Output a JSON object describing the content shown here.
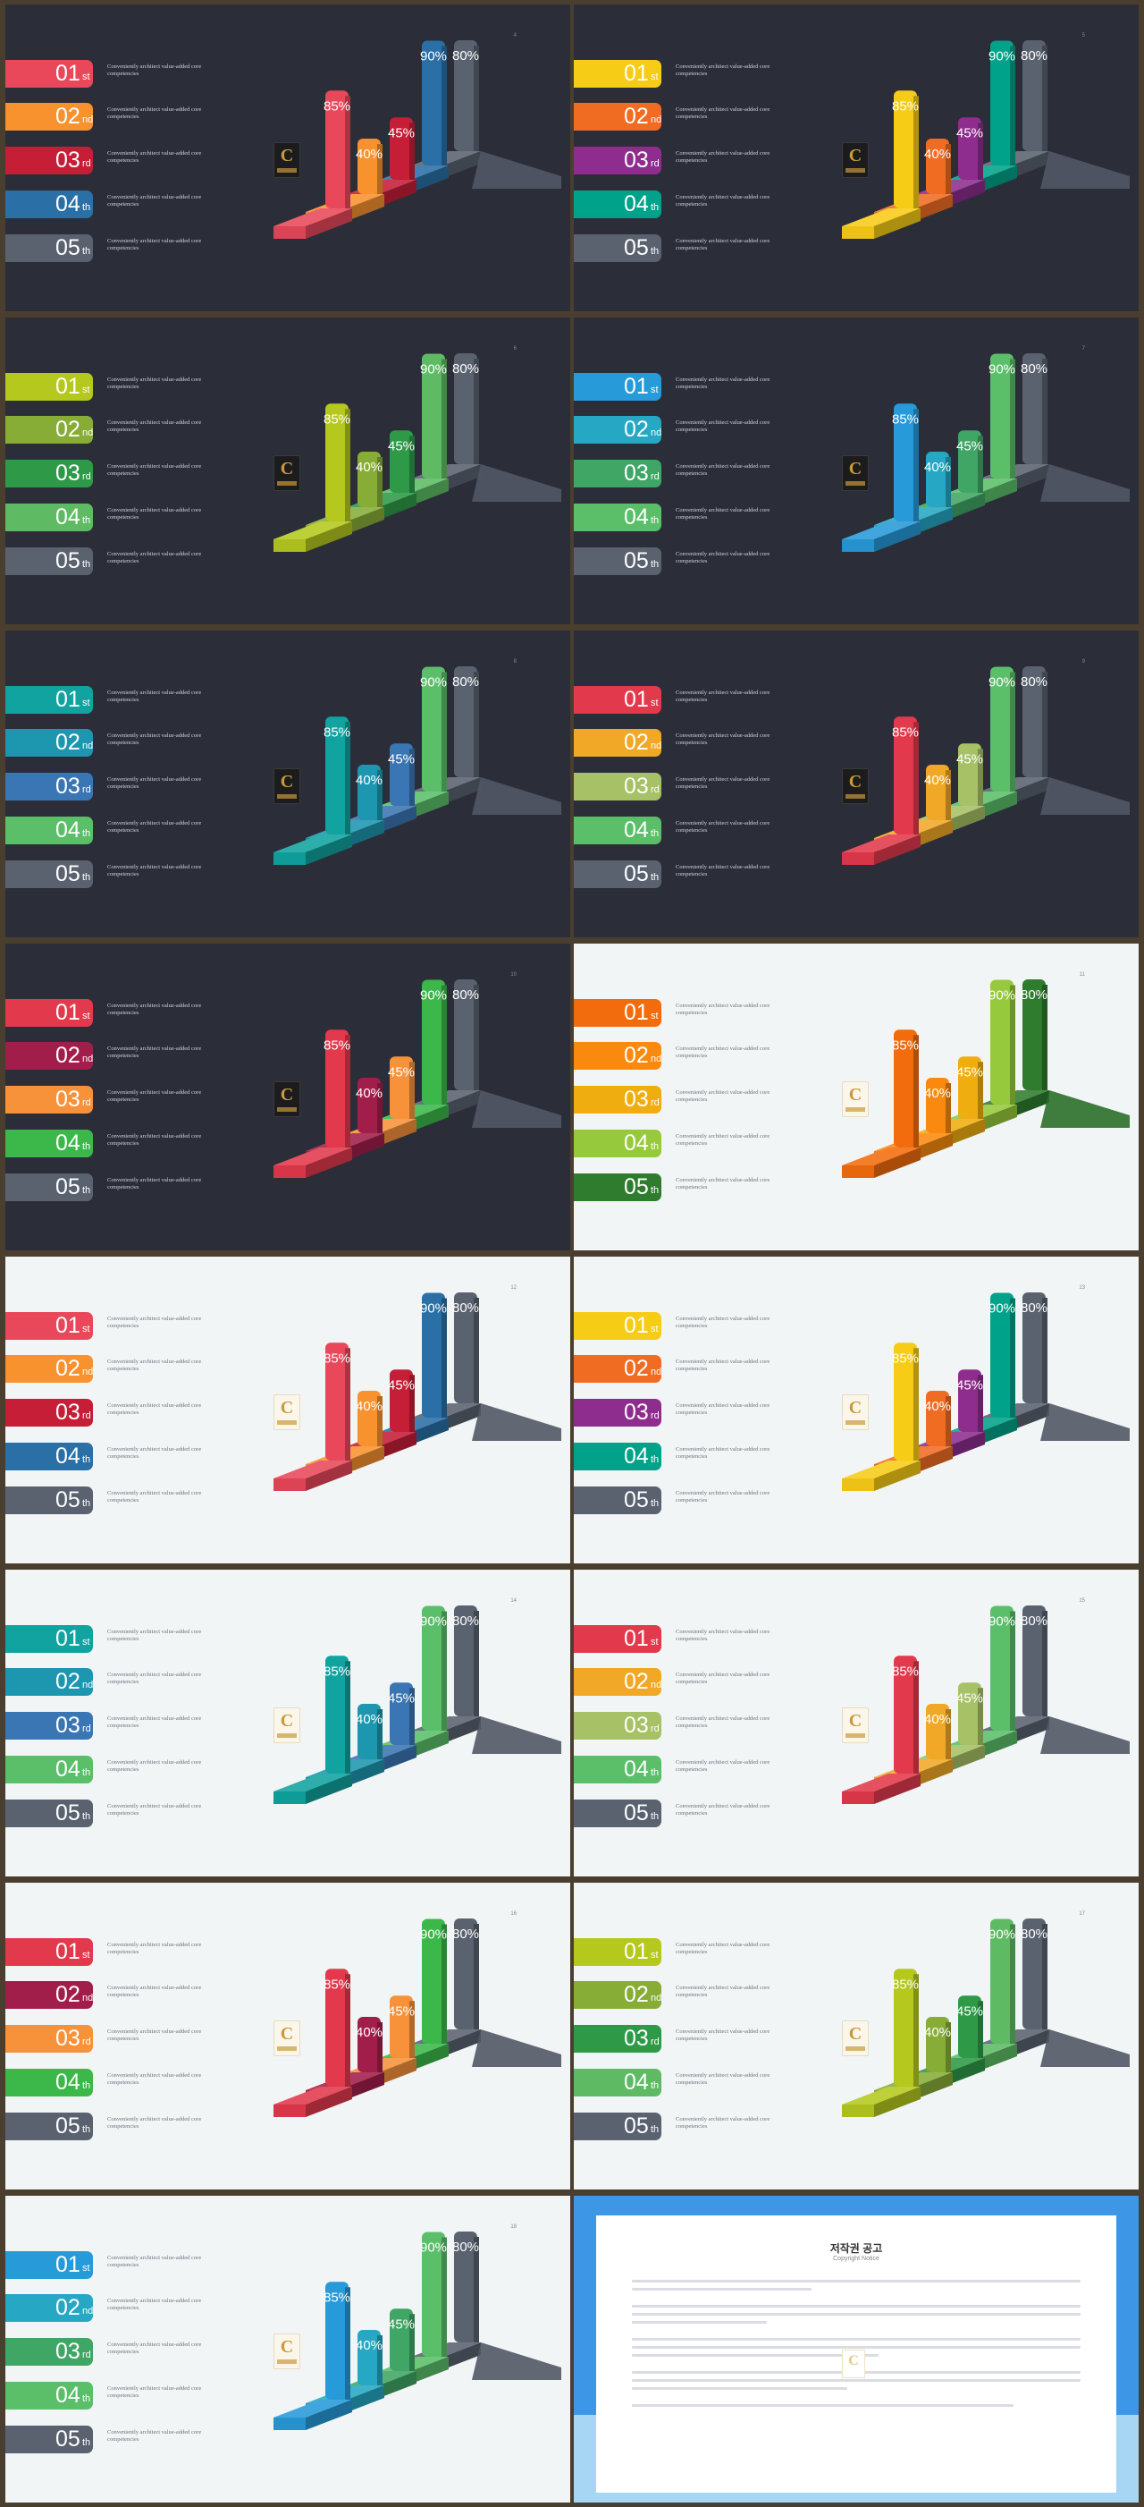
{
  "common": {
    "items": [
      {
        "num": "01",
        "suffix": "st",
        "desc": "Conveniently architect value-added core competencies"
      },
      {
        "num": "02",
        "suffix": "nd",
        "desc": "Conveniently architect value-added core competencies"
      },
      {
        "num": "03",
        "suffix": "rd",
        "desc": "Conveniently architect value-added core competencies"
      },
      {
        "num": "04",
        "suffix": "th",
        "desc": "Conveniently architect value-added core competencies"
      },
      {
        "num": "05",
        "suffix": "th",
        "desc": "Conveniently architect value-added core competencies"
      }
    ],
    "bars": [
      {
        "label": "85%",
        "value": 85
      },
      {
        "label": "40%",
        "value": 40
      },
      {
        "label": "45%",
        "value": 45
      },
      {
        "label": "90%",
        "value": 90
      },
      {
        "label": "80%",
        "value": 80
      }
    ],
    "logo_letter": "C"
  },
  "slides": [
    {
      "page": "4",
      "theme": "dark",
      "colors": [
        "#e8485a",
        "#f7922f",
        "#c51e36",
        "#2a6fa6",
        "#5a6270"
      ]
    },
    {
      "page": "5",
      "theme": "dark",
      "colors": [
        "#f7cc16",
        "#f06c23",
        "#8e2d8e",
        "#00a389",
        "#5a6270"
      ]
    },
    {
      "page": "6",
      "theme": "dark",
      "colors": [
        "#b4c81e",
        "#88ad37",
        "#2e9a48",
        "#5ebb64",
        "#5a6270"
      ]
    },
    {
      "page": "7",
      "theme": "dark",
      "colors": [
        "#279ad9",
        "#26a7c3",
        "#40a665",
        "#5bbf6a",
        "#5a6270"
      ]
    },
    {
      "page": "8",
      "theme": "dark",
      "colors": [
        "#10a3a0",
        "#1d97b0",
        "#3a76b4",
        "#5bbf6a",
        "#5a6270"
      ]
    },
    {
      "page": "9",
      "theme": "dark",
      "colors": [
        "#e2394c",
        "#f1a827",
        "#a6c166",
        "#5bbf6a",
        "#5a6270"
      ]
    },
    {
      "page": "10",
      "theme": "dark",
      "colors": [
        "#e2394c",
        "#a21e4a",
        "#f7923a",
        "#3cb84a",
        "#5a6270"
      ]
    },
    {
      "page": "11",
      "theme": "light",
      "colors": [
        "#f26c0d",
        "#f98a0f",
        "#f0ad0f",
        "#97c93c",
        "#2f7c2f"
      ]
    },
    {
      "page": "12",
      "theme": "light",
      "colors": [
        "#e8485a",
        "#f7922f",
        "#c51e36",
        "#2a6fa6",
        "#5a6270"
      ]
    },
    {
      "page": "13",
      "theme": "light",
      "colors": [
        "#f7cc16",
        "#f06c23",
        "#8e2d8e",
        "#00a389",
        "#5a6270"
      ]
    },
    {
      "page": "14",
      "theme": "light",
      "colors": [
        "#10a3a0",
        "#1d97b0",
        "#3a76b4",
        "#5bbf6a",
        "#5a6270"
      ]
    },
    {
      "page": "15",
      "theme": "light",
      "colors": [
        "#e2394c",
        "#f1a827",
        "#a6c166",
        "#5bbf6a",
        "#5a6270"
      ]
    },
    {
      "page": "16",
      "theme": "light",
      "colors": [
        "#e2394c",
        "#a21e4a",
        "#f7923a",
        "#3cb84a",
        "#5a6270"
      ]
    },
    {
      "page": "17",
      "theme": "light",
      "colors": [
        "#b4c81e",
        "#88ad37",
        "#2e9a48",
        "#5ebb64",
        "#5a6270"
      ]
    },
    {
      "page": "18",
      "theme": "light",
      "colors": [
        "#279ad9",
        "#26a7c3",
        "#40a665",
        "#5bbf6a",
        "#5a6270"
      ]
    }
  ],
  "copyright": {
    "title": "저작권 공고",
    "subtitle": "Copyright Notice"
  }
}
